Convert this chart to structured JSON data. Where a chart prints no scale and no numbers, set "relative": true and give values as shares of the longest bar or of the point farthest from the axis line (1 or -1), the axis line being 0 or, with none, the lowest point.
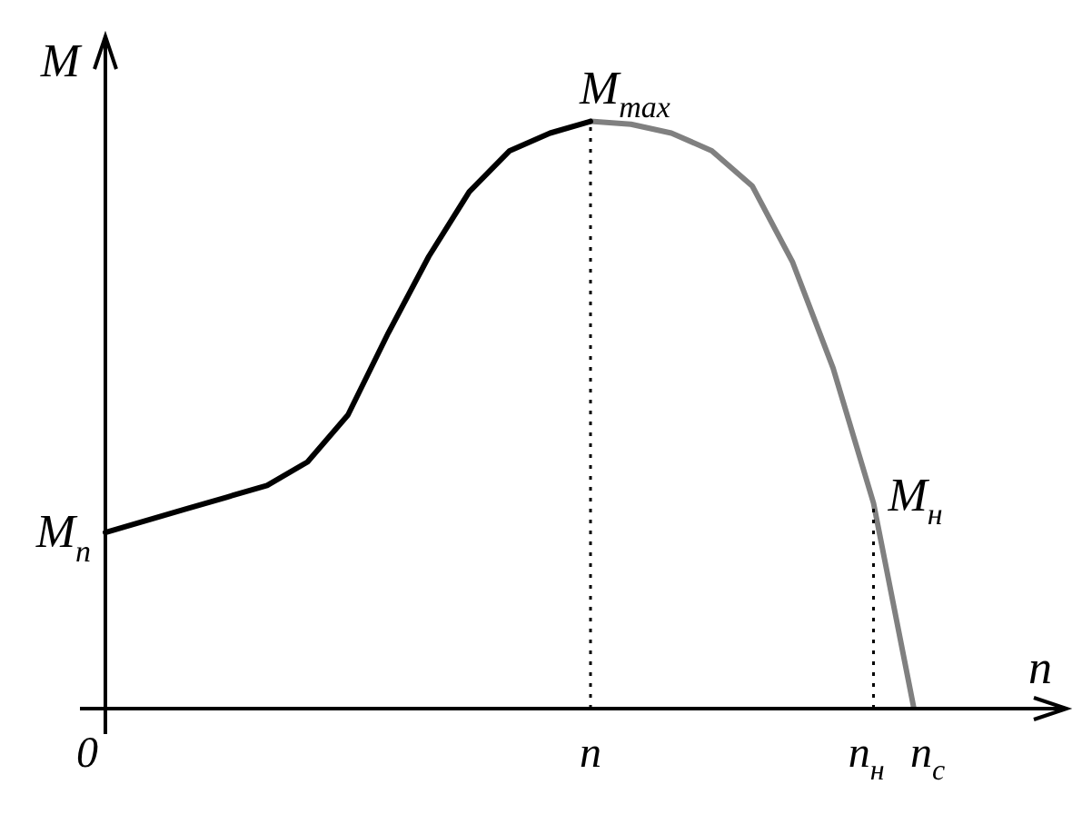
{
  "chart_data": {
    "type": "line",
    "relative": true,
    "xlabel": "n",
    "ylabel": "M",
    "categories": [
      "0",
      null,
      null,
      null,
      null,
      null,
      null,
      null,
      null,
      null,
      null,
      null,
      "n",
      null,
      null,
      null,
      null,
      null,
      null,
      "n$_{н}$",
      "n$_{с}$"
    ],
    "series": [
      {
        "color": "#000000",
        "values": [
          0.3,
          0.32,
          0.34,
          0.36,
          0.38,
          0.42,
          0.5,
          0.64,
          0.77,
          0.88,
          0.95,
          0.98,
          1,
          null,
          null,
          null,
          null,
          null,
          null,
          null,
          null
        ]
      },
      {
        "color": "#808080",
        "values": [
          null,
          null,
          null,
          null,
          null,
          null,
          null,
          null,
          null,
          null,
          null,
          null,
          1,
          0.995,
          0.98,
          0.95,
          0.89,
          0.76,
          0.58,
          0.35,
          0
        ]
      }
    ],
    "ref_lines": [
      {
        "axis": "x",
        "value": "n",
        "line_style": "dotted"
      },
      {
        "axis": "x",
        "value": "n$_{н}$",
        "line_style": "dotted"
      }
    ],
    "annotations": [
      "M$_{п}$",
      {
        "text": "M$_{max}$",
        "x": "n",
        "y": 1
      },
      {
        "text": "M$_{н}$",
        "x": "n$_{н}$",
        "y": 0.35
      }
    ],
    "grid": false,
    "legend": false,
    "marker": "none",
    "line_style": "solid"
  }
}
